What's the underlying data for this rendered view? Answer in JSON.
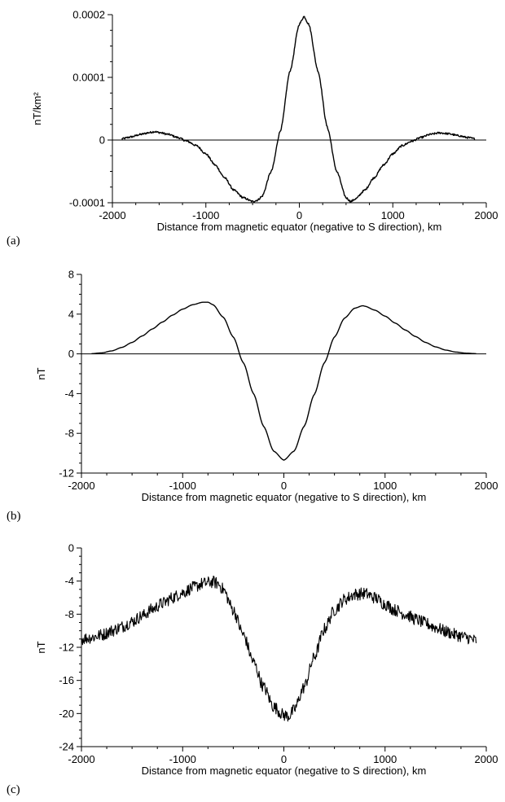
{
  "chart_data": [
    {
      "type": "line",
      "panel_label": "(a)",
      "xlabel": "Distance from magnetic equator (negative to S direction), km",
      "ylabel": "nT/km²",
      "xlim": [
        -2000,
        2000
      ],
      "ylim": [
        -0.0001,
        0.0002
      ],
      "xticks": [
        -2000,
        -1000,
        0,
        1000,
        2000
      ],
      "xtick_labels": [
        "-2000",
        "-1000",
        "0",
        "1000",
        "2000"
      ],
      "yticks": [
        -0.0001,
        0,
        0.0001,
        0.0002
      ],
      "ytick_labels": [
        "-0.0001",
        "0",
        "0.0001",
        "0.0002"
      ],
      "grid": false,
      "zero_line": true,
      "series": [
        {
          "x": [
            -1900,
            -1800,
            -1700,
            -1600,
            -1550,
            -1500,
            -1400,
            -1300,
            -1200,
            -1100,
            -1000,
            -900,
            -800,
            -700,
            -600,
            -500,
            -450,
            -400,
            -300,
            -200,
            -100,
            0,
            50,
            100,
            200,
            300,
            400,
            500,
            550,
            600,
            700,
            800,
            900,
            1000,
            1100,
            1200,
            1300,
            1400,
            1500,
            1600,
            1700,
            1800,
            1880
          ],
          "y": [
            2e-06,
            5e-06,
            9e-06,
            1.2e-05,
            1.35e-05,
            1.2e-05,
            9e-06,
            4e-06,
            -2e-06,
            -9e-06,
            -2.2e-05,
            -4e-05,
            -6e-05,
            -8e-05,
            -9.2e-05,
            -9.8e-05,
            -9.6e-05,
            -9e-05,
            -5e-05,
            1.6e-05,
            0.00011,
            0.000185,
            0.000197,
            0.000185,
            0.00011,
            2e-05,
            -5e-05,
            -9.2e-05,
            -9.8e-05,
            -9.4e-05,
            -8e-05,
            -6e-05,
            -4e-05,
            -2.2e-05,
            -9e-06,
            -2e-06,
            4e-06,
            9e-06,
            1.15e-05,
            1e-05,
            7e-06,
            4e-06,
            2e-06
          ],
          "noise": 1.5e-06
        }
      ]
    },
    {
      "type": "line",
      "panel_label": "(b)",
      "xlabel": "Distance from magnetic equator (negative to S direction), km",
      "ylabel": "nT",
      "xlim": [
        -2000,
        2000
      ],
      "ylim": [
        -12,
        8
      ],
      "xticks": [
        -2000,
        -1000,
        0,
        1000,
        2000
      ],
      "xtick_labels": [
        "-2000",
        "-1000",
        "0",
        "1000",
        "2000"
      ],
      "yticks": [
        -12,
        -8,
        -4,
        0,
        4,
        8
      ],
      "ytick_labels": [
        "-12",
        "-8",
        "-4",
        "0",
        "4",
        "8"
      ],
      "grid": false,
      "zero_line": true,
      "series": [
        {
          "x": [
            -1900,
            -1800,
            -1700,
            -1600,
            -1500,
            -1400,
            -1300,
            -1200,
            -1100,
            -1000,
            -900,
            -800,
            -750,
            -700,
            -600,
            -500,
            -400,
            -300,
            -200,
            -100,
            0,
            100,
            200,
            300,
            400,
            500,
            600,
            700,
            780,
            800,
            900,
            1000,
            1100,
            1200,
            1300,
            1400,
            1500,
            1600,
            1700,
            1800,
            1900
          ],
          "y": [
            0.02,
            0.1,
            0.3,
            0.65,
            1.15,
            1.8,
            2.5,
            3.2,
            3.9,
            4.5,
            4.95,
            5.2,
            5.2,
            4.95,
            3.7,
            1.7,
            -0.9,
            -4.0,
            -7.3,
            -9.8,
            -10.7,
            -9.8,
            -7.3,
            -4.1,
            -0.9,
            1.7,
            3.6,
            4.6,
            4.85,
            4.8,
            4.4,
            3.8,
            3.1,
            2.4,
            1.75,
            1.15,
            0.7,
            0.38,
            0.18,
            0.07,
            0.02
          ],
          "noise": 0
        }
      ]
    },
    {
      "type": "line",
      "panel_label": "(c)",
      "xlabel": "Distance from magnetic equator (negative to S direction), km",
      "ylabel": "nT",
      "xlim": [
        -2000,
        2000
      ],
      "ylim": [
        -24,
        0
      ],
      "xticks": [
        -2000,
        -1000,
        0,
        1000,
        2000
      ],
      "xtick_labels": [
        "-2000",
        "-1000",
        "0",
        "1000",
        "2000"
      ],
      "yticks": [
        -24,
        -20,
        -16,
        -12,
        -8,
        -4,
        0
      ],
      "ytick_labels": [
        "-24",
        "-20",
        "-16",
        "-12",
        "-8",
        "-4",
        "0"
      ],
      "grid": false,
      "zero_line": false,
      "series": [
        {
          "x": [
            -2000,
            -1900,
            -1800,
            -1700,
            -1600,
            -1500,
            -1400,
            -1300,
            -1200,
            -1100,
            -1000,
            -900,
            -800,
            -700,
            -650,
            -600,
            -500,
            -400,
            -300,
            -200,
            -100,
            0,
            50,
            100,
            200,
            300,
            400,
            500,
            600,
            700,
            800,
            900,
            1000,
            1100,
            1200,
            1300,
            1400,
            1500,
            1600,
            1700,
            1800,
            1900
          ],
          "y": [
            -11,
            -10.8,
            -10.5,
            -10,
            -9.5,
            -8.9,
            -8.2,
            -7.4,
            -6.7,
            -6.0,
            -5.4,
            -4.8,
            -4.3,
            -4.1,
            -4.3,
            -5.0,
            -7.5,
            -10.5,
            -13.8,
            -16.8,
            -19.2,
            -20.2,
            -20.3,
            -19.6,
            -16.8,
            -13.2,
            -9.8,
            -7.5,
            -6.2,
            -5.6,
            -5.5,
            -6.0,
            -6.8,
            -7.5,
            -8.0,
            -8.6,
            -9.1,
            -9.6,
            -10.1,
            -10.5,
            -10.8,
            -11.2
          ],
          "noise": 0.75
        }
      ]
    }
  ]
}
